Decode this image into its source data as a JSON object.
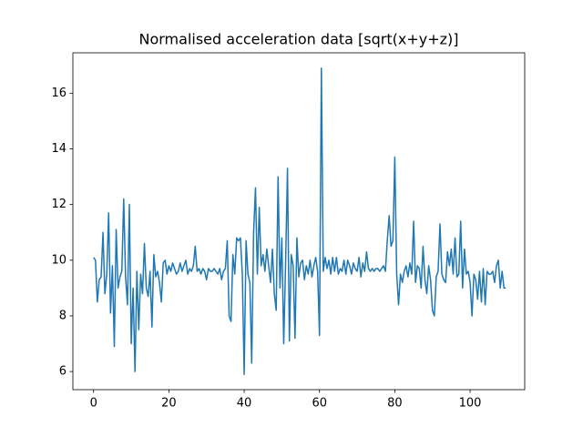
{
  "chart_data": {
    "type": "line",
    "title": "Normalised acceleration data [sqrt(x+y+z)]",
    "x": [
      0,
      0.5,
      1,
      1.5,
      2,
      2.5,
      3,
      3.5,
      4,
      4.5,
      5,
      5.5,
      6,
      6.5,
      7,
      7.5,
      8,
      8.5,
      9,
      9.5,
      10,
      10.5,
      11,
      11.5,
      12,
      12.5,
      13,
      13.5,
      14,
      14.5,
      15,
      15.5,
      16,
      16.5,
      17,
      17.5,
      18,
      18.5,
      19,
      19.5,
      20,
      20.5,
      21,
      21.5,
      22,
      22.5,
      23,
      23.5,
      24,
      24.5,
      25,
      25.5,
      26,
      26.5,
      27,
      27.5,
      28,
      28.5,
      29,
      29.5,
      30,
      30.5,
      31,
      31.5,
      32,
      32.5,
      33,
      33.5,
      34,
      34.5,
      35,
      35.5,
      36,
      36.5,
      37,
      37.5,
      38,
      38.5,
      39,
      39.5,
      40,
      40.5,
      41,
      41.5,
      42,
      42.5,
      43,
      43.5,
      44,
      44.5,
      45,
      45.5,
      46,
      46.5,
      47,
      47.5,
      48,
      48.5,
      49,
      49.5,
      50,
      50.5,
      51,
      51.5,
      52,
      52.5,
      53,
      53.5,
      54,
      54.5,
      55,
      55.5,
      56,
      56.5,
      57,
      57.5,
      58,
      58.5,
      59,
      59.5,
      60,
      60.5,
      61,
      61.5,
      62,
      62.5,
      63,
      63.5,
      64,
      64.5,
      65,
      65.5,
      66,
      66.5,
      67,
      67.5,
      68,
      68.5,
      69,
      69.5,
      70,
      70.5,
      71,
      71.5,
      72,
      72.5,
      73,
      73.5,
      74,
      74.5,
      75,
      75.5,
      76,
      76.5,
      77,
      77.5,
      78,
      78.5,
      79,
      79.5,
      80,
      80.5,
      81,
      81.5,
      82,
      82.5,
      83,
      83.5,
      84,
      84.5,
      85,
      85.5,
      86,
      86.5,
      87,
      87.5,
      88,
      88.5,
      89,
      89.5,
      90,
      90.5,
      91,
      91.5,
      92,
      92.5,
      93,
      93.5,
      94,
      94.5,
      95,
      95.5,
      96,
      96.5,
      97,
      97.5,
      98,
      98.5,
      99,
      99.5,
      100,
      100.5,
      101,
      101.5,
      102,
      102.5,
      103,
      103.5,
      104,
      104.5,
      105,
      105.5,
      106,
      106.5,
      107,
      107.5,
      108,
      108.5,
      109,
      109.5
    ],
    "series": [
      {
        "color": "#1f77b4",
        "values": [
          10.1,
          10.0,
          8.5,
          9.3,
          9.4,
          11.0,
          8.8,
          9.5,
          11.7,
          8.1,
          9.8,
          6.9,
          11.1,
          9.0,
          9.4,
          9.6,
          12.2,
          9.4,
          8.4,
          12.0,
          7.0,
          9.0,
          6.0,
          9.6,
          7.5,
          9.5,
          8.8,
          10.6,
          9.0,
          8.7,
          9.6,
          7.6,
          10.2,
          9.4,
          9.6,
          9.2,
          8.5,
          9.9,
          10.0,
          9.5,
          9.8,
          9.6,
          9.9,
          9.7,
          9.5,
          9.6,
          9.9,
          9.6,
          9.8,
          10.0,
          9.5,
          9.7,
          9.6,
          9.8,
          10.5,
          9.6,
          9.7,
          9.5,
          9.7,
          9.6,
          9.3,
          9.7,
          9.6,
          9.6,
          9.7,
          9.6,
          9.5,
          9.7,
          9.3,
          9.6,
          9.7,
          10.7,
          8.0,
          7.8,
          10.2,
          9.5,
          10.8,
          10.7,
          10.8,
          9.5,
          5.9,
          10.7,
          9.5,
          9.2,
          6.3,
          11.0,
          12.6,
          9.5,
          11.9,
          9.8,
          10.2,
          9.6,
          10.4,
          9.8,
          9.2,
          10.4,
          8.8,
          8.2,
          13.0,
          9.0,
          10.8,
          7.0,
          9.9,
          13.3,
          7.1,
          10.2,
          9.8,
          7.2,
          10.8,
          9.4,
          9.9,
          10.0,
          9.3,
          9.8,
          9.5,
          10.0,
          9.4,
          9.8,
          10.1,
          9.6,
          7.3,
          16.9,
          9.6,
          10.1,
          9.7,
          10.0,
          9.5,
          10.1,
          9.6,
          10.1,
          9.5,
          9.7,
          9.6,
          10.0,
          9.5,
          10.0,
          9.8,
          9.5,
          9.9,
          9.7,
          9.6,
          10.1,
          9.4,
          9.9,
          9.6,
          10.3,
          9.7,
          9.6,
          9.7,
          9.6,
          9.7,
          9.7,
          9.6,
          9.7,
          9.8,
          9.6,
          10.7,
          11.6,
          10.5,
          10.7,
          13.7,
          9.5,
          8.4,
          9.5,
          9.2,
          9.6,
          9.8,
          9.4,
          9.9,
          9.5,
          11.4,
          9.2,
          9.8,
          9.7,
          9.0,
          10.5,
          9.3,
          8.8,
          9.8,
          9.3,
          8.2,
          8.0,
          9.4,
          9.6,
          11.3,
          9.5,
          9.3,
          9.2,
          10.3,
          9.8,
          10.4,
          9.5,
          10.8,
          9.4,
          9.5,
          11.4,
          9.0,
          10.4,
          9.5,
          9.6,
          9.2,
          8.0,
          9.5,
          9.3,
          8.6,
          9.6,
          8.5,
          9.7,
          8.4,
          9.6,
          9.5,
          9.5,
          9.6,
          9.2,
          9.8,
          10.0,
          9.0,
          9.6,
          9.0,
          9.0
        ]
      }
    ],
    "xlim": [
      -5.5,
      114.5
    ],
    "ylim": [
      5.35,
      17.45
    ],
    "xticks": [
      0,
      20,
      40,
      60,
      80,
      100
    ],
    "yticks": [
      6,
      8,
      10,
      12,
      14,
      16
    ],
    "grid": false
  }
}
